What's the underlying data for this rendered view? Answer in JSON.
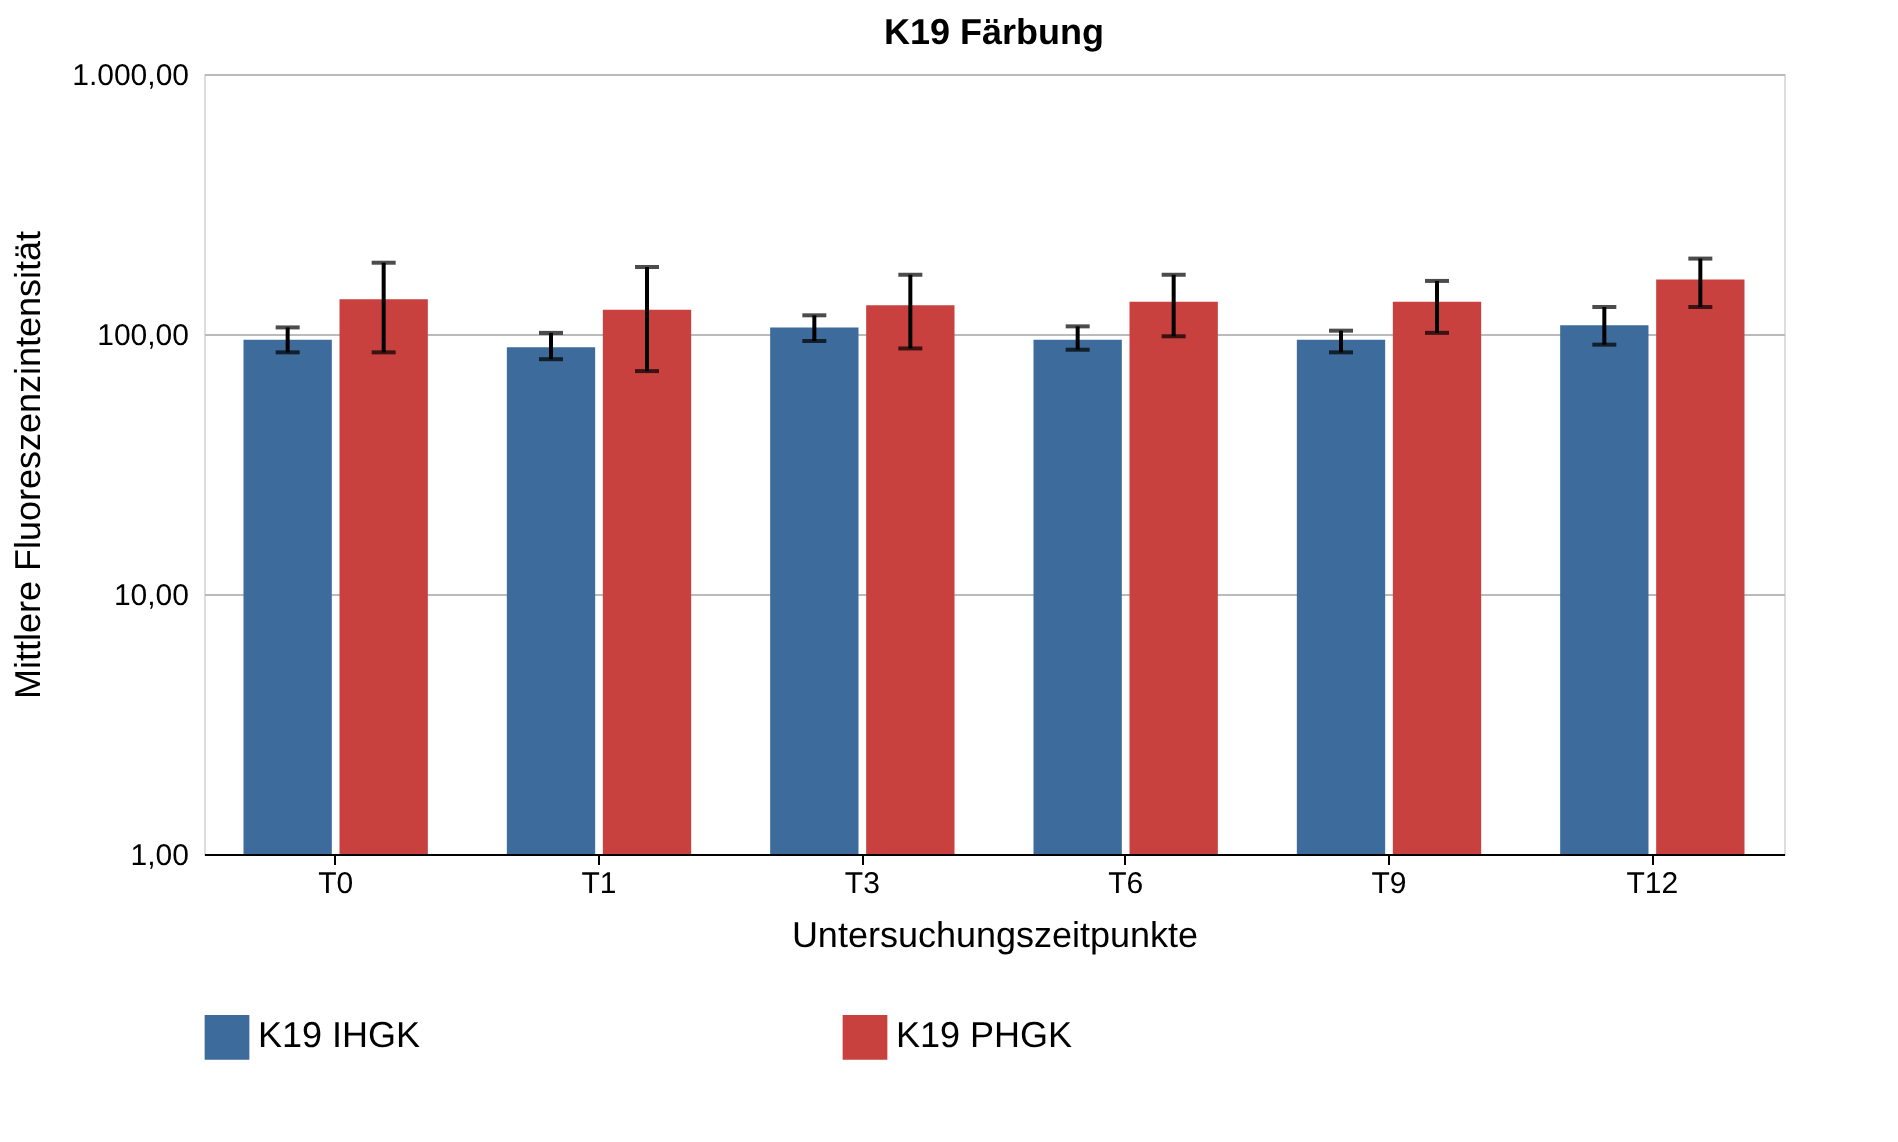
{
  "chart_data": {
    "type": "bar",
    "title": "K19 Färbung",
    "xlabel": "Untersuchungszeitpunkte",
    "ylabel": "Mittlere Fluoreszenzintensität",
    "categories": [
      "T0",
      "T1",
      "T3",
      "T6",
      "T9",
      "T12"
    ],
    "series": [
      {
        "name": "K19 IHGK",
        "color": "#3d6b9c",
        "values": [
          95,
          89,
          106,
          95,
          95,
          108
        ],
        "errors": [
          [
            85,
            106
          ],
          [
            80,
            101
          ],
          [
            94,
            118
          ],
          [
            87,
            107
          ],
          [
            85,
            103
          ],
          [
            91,
            127
          ]
        ]
      },
      {
        "name": "K19 PHGK",
        "color": "#c8413e",
        "values": [
          136,
          124,
          129,
          133,
          133,
          162
        ],
        "errors": [
          [
            85,
            188
          ],
          [
            72,
            181
          ],
          [
            88,
            169
          ],
          [
            98,
            169
          ],
          [
            101,
            160
          ],
          [
            127,
            195
          ]
        ]
      }
    ],
    "log": true,
    "ylim": [
      1,
      1000
    ],
    "yticks": [
      {
        "value": 1,
        "label": "1,00"
      },
      {
        "value": 10,
        "label": "10,00"
      },
      {
        "value": 100,
        "label": "100,00"
      },
      {
        "value": 1000,
        "label": "1.000,00"
      }
    ],
    "grid": "y",
    "legend": "bottom"
  }
}
